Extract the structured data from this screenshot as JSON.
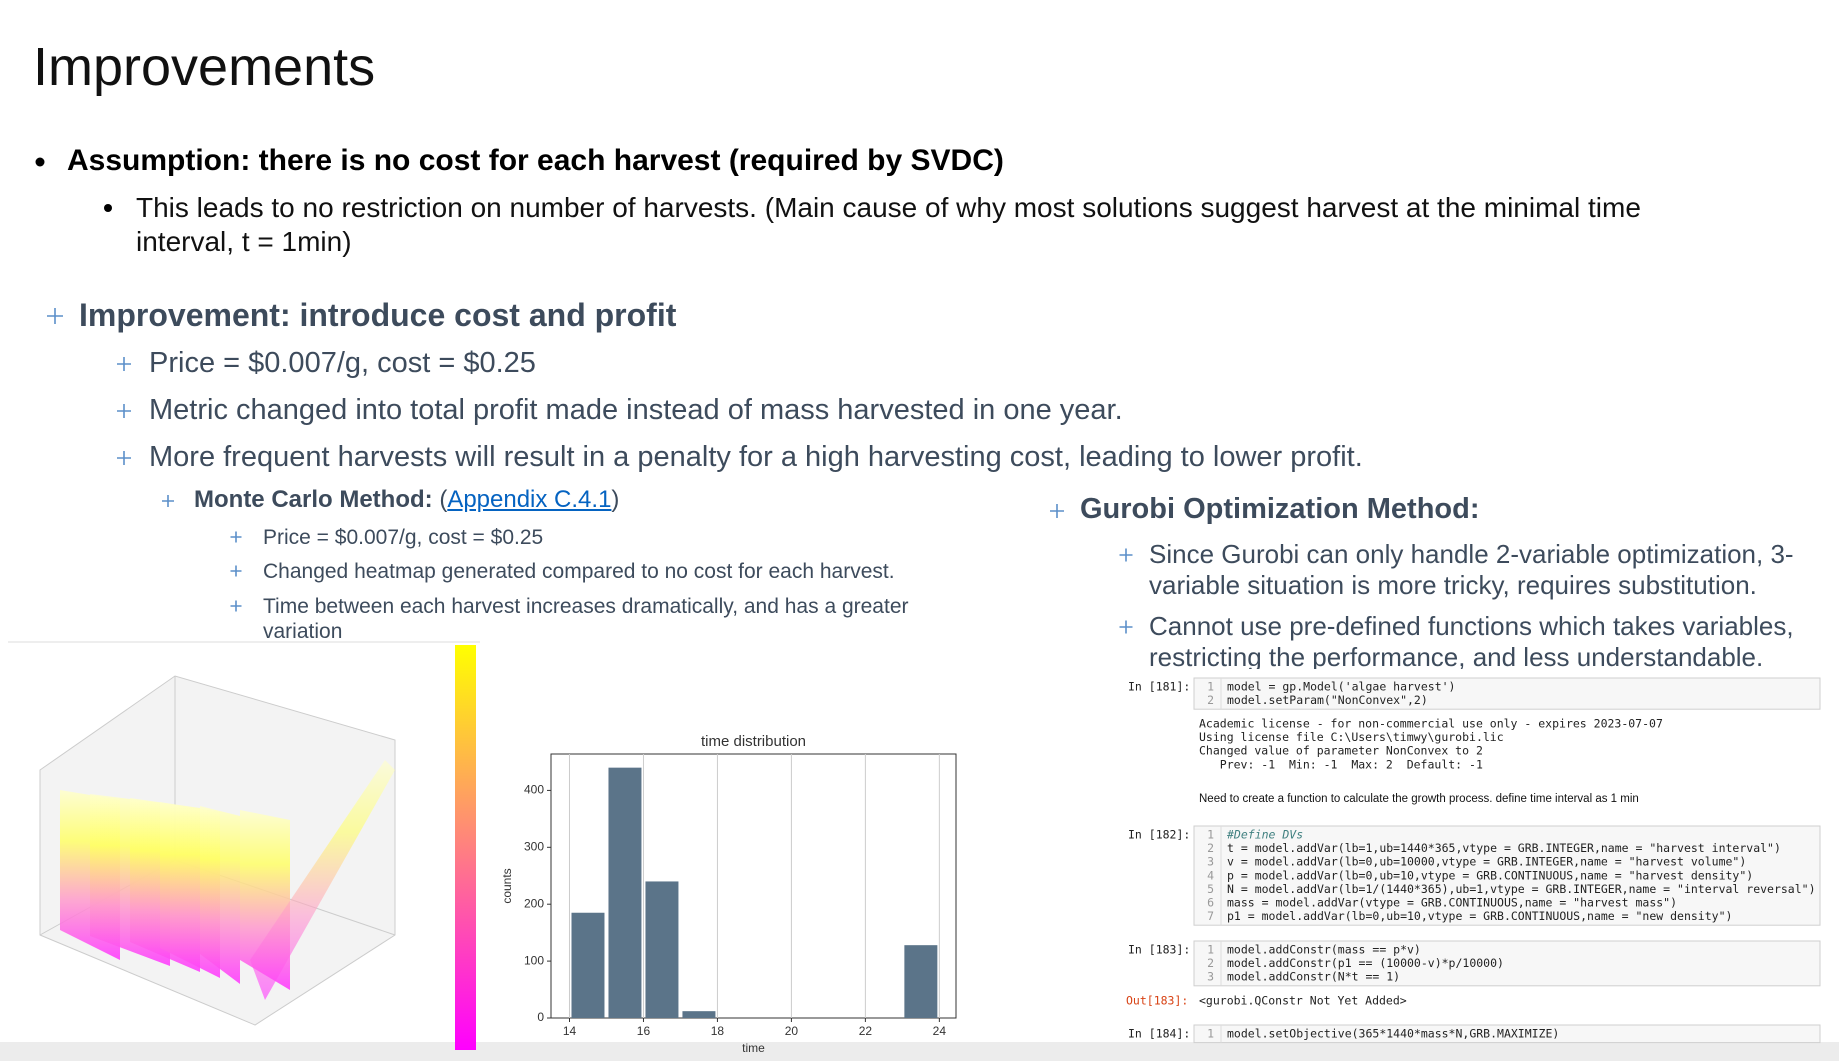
{
  "title": "Improvements",
  "assumption": {
    "text": "Assumption: there is no cost for each harvest (required by SVDC)",
    "child": "This leads to no restriction on number of harvests. (Main cause of why most solutions suggest harvest at the minimal time interval, t = 1min)"
  },
  "improvement": {
    "heading": "Improvement: introduce cost and profit",
    "items": [
      "Price = $0.007/g, cost = $0.25",
      "Metric changed into total profit made instead of mass harvested in one year.",
      "More frequent harvests will result in a penalty for a high harvesting cost, leading to lower profit."
    ]
  },
  "monte_carlo": {
    "label": "Monte Carlo Method:",
    "link_open": "(",
    "link": "Appendix C.4.1",
    "link_close": ")",
    "items": [
      "Price = $0.007/g, cost = $0.25",
      "Changed heatmap generated compared to no cost for each harvest.",
      "Time between each harvest increases dramatically, and has a greater variation"
    ]
  },
  "gurobi": {
    "heading": "Gurobi Optimization Method:",
    "items": [
      "Since Gurobi can only handle 2-variable optimization, 3-variable situation is more tricky, requires substitution.",
      "Cannot use pre-defined functions which takes variables, restricting the performance, and less understandable."
    ]
  },
  "notebook": {
    "cells": [
      {
        "prompt": "In [181]:",
        "lines": [
          {
            "n": "1",
            "code": "model = gp.Model('algae harvest')"
          },
          {
            "n": "2",
            "code": "model.setParam(\"NonConvex\",2)"
          }
        ],
        "output": [
          "Academic license - for non-commercial use only - expires 2023-07-07",
          "Using license file C:\\Users\\timwy\\gurobi.lic",
          "Changed value of parameter NonConvex to 2",
          "   Prev: -1  Min: -1  Max: 2  Default: -1"
        ]
      },
      {
        "markdown": "Need to create a function to calculate the growth process. define time interval as 1 min"
      },
      {
        "prompt": "In [182]:",
        "lines": [
          {
            "n": "1",
            "code": "#Define DVs"
          },
          {
            "n": "2",
            "code": "t = model.addVar(lb=1,ub=1440*365,vtype = GRB.INTEGER,name = \"harvest interval\")"
          },
          {
            "n": "3",
            "code": "v = model.addVar(lb=0,ub=10000,vtype = GRB.INTEGER,name = \"harvest volume\")"
          },
          {
            "n": "4",
            "code": "p = model.addVar(lb=0,ub=10,vtype = GRB.CONTINUOUS,name = \"harvest density\")"
          },
          {
            "n": "5",
            "code": "N = model.addVar(lb=1/(1440*365),ub=1,vtype = GRB.INTEGER,name = \"interval reversal\")"
          },
          {
            "n": "6",
            "code": "mass = model.addVar(vtype = GRB.CONTINUOUS,name = \"harvest mass\")"
          },
          {
            "n": "7",
            "code": "p1 = model.addVar(lb=0,ub=10,vtype = GRB.CONTINUOUS,name = \"new density\")"
          }
        ]
      },
      {
        "prompt": "In [183]:",
        "lines": [
          {
            "n": "1",
            "code": "model.addConstr(mass == p*v)"
          },
          {
            "n": "2",
            "code": "model.addConstr(p1 == (10000-v)*p/10000)"
          },
          {
            "n": "3",
            "code": "model.addConstr(N*t == 1)"
          }
        ],
        "out_prompt": "Out[183]:",
        "output": [
          "<gurobi.QConstr Not Yet Added>"
        ]
      },
      {
        "prompt": "In [184]:",
        "lines": [
          {
            "n": "1",
            "code": "model.setObjective(365*1440*mass*N,GRB.MAXIMIZE)"
          }
        ]
      }
    ]
  },
  "chart_data": {
    "type": "histogram",
    "title": "time distribution",
    "xlabel": "time",
    "ylabel": "counts",
    "bins": [
      14,
      15,
      16,
      17,
      18,
      19,
      20,
      21,
      22,
      23,
      24
    ],
    "values": [
      185,
      440,
      240,
      12,
      0,
      0,
      0,
      0,
      0,
      128
    ],
    "color": "#5b7489",
    "xlim": [
      13.5,
      24.45
    ],
    "ylim": [
      0,
      464
    ],
    "xticks": [
      14,
      16,
      18,
      20,
      22,
      24
    ],
    "yticks": [
      0,
      100,
      200,
      300,
      400
    ],
    "grid": "x"
  }
}
